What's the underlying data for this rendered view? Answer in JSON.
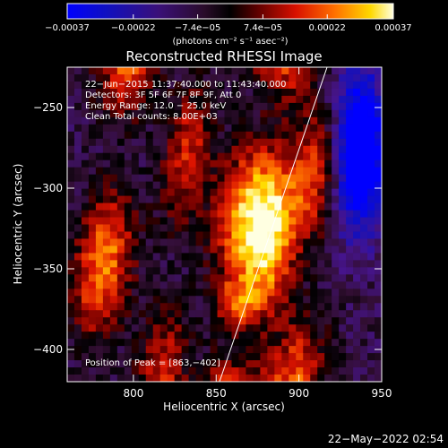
{
  "chart_data": {
    "type": "heatmap",
    "title": "Reconstructed RHESSI Image",
    "xlabel": "Heliocentric X (arcsec)",
    "ylabel": "Heliocentric Y (arcsec)",
    "xlim": [
      760,
      950
    ],
    "ylim": [
      -420,
      -225
    ],
    "x_ticks": [
      800,
      850,
      900,
      950
    ],
    "y_ticks": [
      -250,
      -300,
      -350,
      -400
    ],
    "colorbar": {
      "label": "(photons cm⁻² s⁻¹ asec⁻²)",
      "range": [
        -0.00037,
        0.00037
      ],
      "ticks": [
        {
          "value": -0.00037,
          "label": "−0.00037"
        },
        {
          "value": -0.00022,
          "label": "−0.00022"
        },
        {
          "value": -7.4e-05,
          "label": "−7.4e−05"
        },
        {
          "value": 7.4e-05,
          "label": "7.4e−05"
        },
        {
          "value": 0.00022,
          "label": "0.00022"
        },
        {
          "value": 0.00037,
          "label": "0.00037"
        }
      ]
    },
    "annotations": [
      "22−Jun−2015 11:37:40.000 to 11:43:40.000",
      "Detectors: 3F 5F 6F 7F 8F 9F, Att 0",
      "Energy Range: 12.0 − 25.0 keV",
      "Clean     Total counts: 8.00E+03"
    ],
    "peak_label": "Position of Peak = [863,−402]",
    "peak": {
      "x": 863,
      "y": -402
    },
    "limb_line": [
      {
        "x": 852,
        "y": -420
      },
      {
        "x": 917,
        "y": -225
      }
    ],
    "bands": [
      {
        "x": 790,
        "y": -280,
        "amp": 0.00033,
        "width": 12
      },
      {
        "x": 830,
        "y": -300,
        "amp": 0.00022,
        "width": 10
      },
      {
        "x": 868,
        "y": -330,
        "amp": 0.00036,
        "width": 14
      },
      {
        "x": 890,
        "y": -280,
        "amp": 0.0003,
        "width": 11
      },
      {
        "x": 912,
        "y": -300,
        "amp": 0.00028,
        "width": 12
      }
    ],
    "negative_regions": [
      {
        "x": 935,
        "y": -290,
        "amp": -0.0003
      },
      {
        "x": 935,
        "y": -260,
        "amp": -0.00028
      }
    ]
  },
  "footer": {
    "date": "22−May−2022 02:54"
  }
}
